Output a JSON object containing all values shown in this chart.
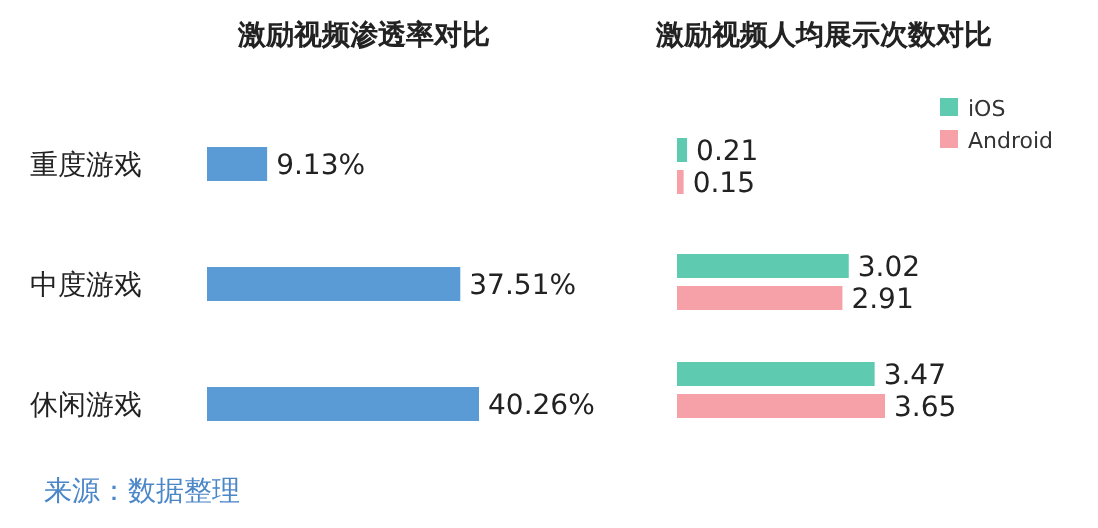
{
  "chart_data": [
    {
      "type": "bar",
      "orientation": "horizontal",
      "title": "激励视频渗透率对比",
      "categories": [
        "重度游戏",
        "中度游戏",
        "休闲游戏"
      ],
      "values": [
        9.13,
        37.51,
        40.26
      ],
      "value_labels": [
        "9.13%",
        "37.51%",
        "40.26%"
      ],
      "color": "#5b9bd5",
      "tick_labels": "y",
      "annotations": [
        "来源：数据整理"
      ]
    },
    {
      "type": "bar",
      "orientation": "horizontal",
      "title": "激励视频人均展示次数对比",
      "categories": [
        null,
        null,
        null
      ],
      "series": [
        {
          "name": "iOS",
          "color": "#5ecbb0",
          "values": [
            0.21,
            3.02,
            3.47
          ]
        },
        {
          "name": "Android",
          "color": "#f6a0a8",
          "values": [
            0.15,
            2.91,
            3.65
          ]
        }
      ],
      "data_labels": true,
      "tick_labels": false,
      "legend": "top right"
    }
  ]
}
